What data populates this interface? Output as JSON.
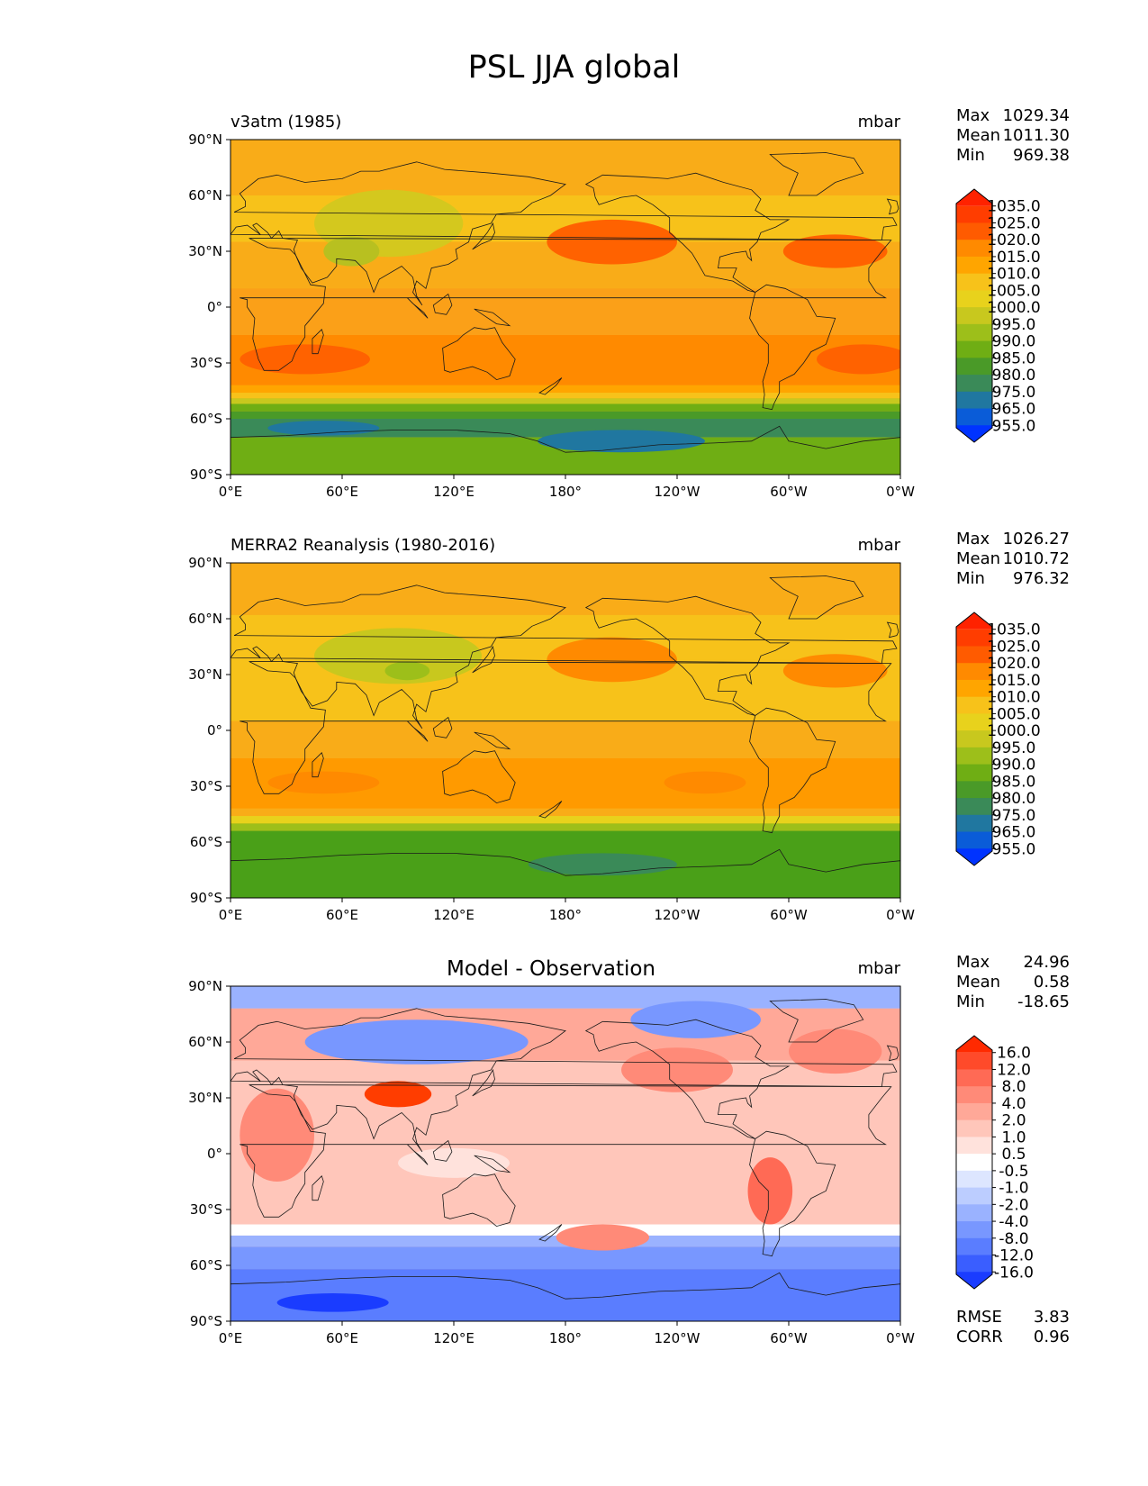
{
  "title": "PSL JJA global",
  "colors": {
    "continents": "#1a1a1a",
    "frame": "#000000"
  },
  "chart_data": [
    {
      "type": "heatmap",
      "subtitle": "v3atm (1985)",
      "units": "mbar",
      "stats": [
        {
          "label": "Max",
          "value": "1029.34"
        },
        {
          "label": "Mean",
          "value": "1011.30"
        },
        {
          "label": "Min",
          "value": "969.38"
        }
      ],
      "xticks": [
        "0°E",
        "60°E",
        "120°E",
        "180°",
        "120°W",
        "60°W",
        "0°W"
      ],
      "yticks": [
        "90°N",
        "60°N",
        "30°N",
        "0°",
        "30°S",
        "60°S",
        "90°S"
      ],
      "levels": [
        "1035.0",
        "1025.0",
        "1020.0",
        "1015.0",
        "1010.0",
        "1005.0",
        "1000.0",
        "995.0",
        "990.0",
        "985.0",
        "980.0",
        "975.0",
        "965.0",
        "955.0"
      ],
      "colormap": [
        "#ff2200",
        "#ff3d00",
        "#ff5b00",
        "#ff8a00",
        "#ffa500",
        "#f7c21a",
        "#e8d21c",
        "#c8c81e",
        "#9dbf1a",
        "#6fae14",
        "#4a9a28",
        "#3a8a58",
        "#2077a0",
        "#0a5cd8",
        "#0033ff"
      ],
      "fields": {
        "base": "#f9ac18"
      },
      "features": [
        {
          "type": "band",
          "lat": [
            90,
            60
          ],
          "color": "#f9ac18"
        },
        {
          "type": "band",
          "lat": [
            60,
            35
          ],
          "color": "#f7c21a"
        },
        {
          "type": "band",
          "lat": [
            35,
            10
          ],
          "color": "#f9ac18"
        },
        {
          "type": "band",
          "lat": [
            10,
            -15
          ],
          "color": "#fba018"
        },
        {
          "type": "band",
          "lat": [
            -15,
            -42
          ],
          "color": "#ff8a00"
        },
        {
          "type": "band",
          "lat": [
            -42,
            -46
          ],
          "color": "#ffa500"
        },
        {
          "type": "band",
          "lat": [
            -46,
            -49
          ],
          "color": "#f7c21a"
        },
        {
          "type": "band",
          "lat": [
            -49,
            -52
          ],
          "color": "#c8c81e"
        },
        {
          "type": "band",
          "lat": [
            -52,
            -56
          ],
          "color": "#6fae14"
        },
        {
          "type": "band",
          "lat": [
            -56,
            -60
          ],
          "color": "#4a9a28"
        },
        {
          "type": "band",
          "lat": [
            -60,
            -70
          ],
          "color": "#3a8a58"
        },
        {
          "type": "band",
          "lat": [
            -70,
            -90
          ],
          "color": "#6fae14"
        },
        {
          "type": "blob",
          "lon": 85,
          "lat": 45,
          "rx": 40,
          "ry": 18,
          "color": "#d4c81e"
        },
        {
          "type": "blob",
          "lon": 65,
          "lat": 30,
          "rx": 15,
          "ry": 8,
          "color": "#b8c020"
        },
        {
          "type": "blob",
          "lon": 205,
          "lat": 35,
          "rx": 35,
          "ry": 12,
          "color": "#ff6200"
        },
        {
          "type": "blob",
          "lon": 325,
          "lat": 30,
          "rx": 28,
          "ry": 9,
          "color": "#ff6200"
        },
        {
          "type": "blob",
          "lon": 40,
          "lat": -28,
          "rx": 35,
          "ry": 8,
          "color": "#ff6200"
        },
        {
          "type": "blob",
          "lon": 340,
          "lat": -28,
          "rx": 25,
          "ry": 8,
          "color": "#ff6200"
        },
        {
          "type": "blob",
          "lon": 50,
          "lat": -65,
          "rx": 30,
          "ry": 4,
          "color": "#2077a0"
        },
        {
          "type": "blob",
          "lon": 210,
          "lat": -72,
          "rx": 45,
          "ry": 6,
          "color": "#2077a0"
        }
      ]
    },
    {
      "type": "heatmap",
      "subtitle": "MERRA2 Reanalysis (1980-2016)",
      "units": "mbar",
      "stats": [
        {
          "label": "Max",
          "value": "1026.27"
        },
        {
          "label": "Mean",
          "value": "1010.72"
        },
        {
          "label": "Min",
          "value": "976.32"
        }
      ],
      "xticks": [
        "0°E",
        "60°E",
        "120°E",
        "180°",
        "120°W",
        "60°W",
        "0°W"
      ],
      "yticks": [
        "90°N",
        "60°N",
        "30°N",
        "0°",
        "30°S",
        "60°S",
        "90°S"
      ],
      "levels": [
        "1035.0",
        "1025.0",
        "1020.0",
        "1015.0",
        "1010.0",
        "1005.0",
        "1000.0",
        "995.0",
        "990.0",
        "985.0",
        "980.0",
        "975.0",
        "965.0",
        "955.0"
      ],
      "colormap": [
        "#ff2200",
        "#ff3d00",
        "#ff5b00",
        "#ff8a00",
        "#ffa500",
        "#f7c21a",
        "#e8d21c",
        "#c8c81e",
        "#9dbf1a",
        "#6fae14",
        "#4a9a28",
        "#3a8a58",
        "#2077a0",
        "#0a5cd8",
        "#0033ff"
      ],
      "fields": {
        "base": "#f9ac18"
      },
      "features": [
        {
          "type": "band",
          "lat": [
            90,
            62
          ],
          "color": "#f9ac18"
        },
        {
          "type": "band",
          "lat": [
            62,
            38
          ],
          "color": "#f7c21a"
        },
        {
          "type": "band",
          "lat": [
            38,
            5
          ],
          "color": "#f7c21a"
        },
        {
          "type": "band",
          "lat": [
            5,
            -15
          ],
          "color": "#f9ac18"
        },
        {
          "type": "band",
          "lat": [
            -15,
            -42
          ],
          "color": "#ff9a00"
        },
        {
          "type": "band",
          "lat": [
            -42,
            -46
          ],
          "color": "#f9ac18"
        },
        {
          "type": "band",
          "lat": [
            -46,
            -50
          ],
          "color": "#e8d21c"
        },
        {
          "type": "band",
          "lat": [
            -50,
            -54
          ],
          "color": "#9dbf1a"
        },
        {
          "type": "band",
          "lat": [
            -54,
            -90
          ],
          "color": "#4aa018"
        },
        {
          "type": "blob",
          "lon": 90,
          "lat": 40,
          "rx": 45,
          "ry": 15,
          "color": "#c8c81e"
        },
        {
          "type": "blob",
          "lon": 95,
          "lat": 32,
          "rx": 12,
          "ry": 5,
          "color": "#9dbf1a"
        },
        {
          "type": "blob",
          "lon": 205,
          "lat": 38,
          "rx": 35,
          "ry": 12,
          "color": "#ff8a00"
        },
        {
          "type": "blob",
          "lon": 325,
          "lat": 32,
          "rx": 28,
          "ry": 9,
          "color": "#ff8a00"
        },
        {
          "type": "blob",
          "lon": 50,
          "lat": -28,
          "rx": 30,
          "ry": 6,
          "color": "#ff8a00"
        },
        {
          "type": "blob",
          "lon": 255,
          "lat": -28,
          "rx": 22,
          "ry": 6,
          "color": "#ff8a00"
        },
        {
          "type": "blob",
          "lon": 200,
          "lat": -72,
          "rx": 40,
          "ry": 6,
          "color": "#3a8a58"
        }
      ]
    },
    {
      "type": "heatmap",
      "subtitle": "Model - Observation",
      "units": "mbar",
      "stats": [
        {
          "label": "Max",
          "value": "24.96"
        },
        {
          "label": "Mean",
          "value": "0.58"
        },
        {
          "label": "Min",
          "value": "-18.65"
        }
      ],
      "extra_stats": [
        {
          "label": "RMSE",
          "value": "3.83"
        },
        {
          "label": "CORR",
          "value": "0.96"
        }
      ],
      "xticks": [
        "0°E",
        "60°E",
        "120°E",
        "180°",
        "120°W",
        "60°W",
        "0°W"
      ],
      "yticks": [
        "90°N",
        "60°N",
        "30°N",
        "0°",
        "30°S",
        "60°S",
        "90°S"
      ],
      "levels": [
        "16.0",
        "12.0",
        "8.0",
        "4.0",
        "2.0",
        "1.0",
        "0.5",
        "-0.5",
        "-1.0",
        "-2.0",
        "-4.0",
        "-8.0",
        "-12.0",
        "-16.0"
      ],
      "colormap": [
        "#ff2a00",
        "#ff4a2a",
        "#ff6a55",
        "#ff8a78",
        "#ffa898",
        "#ffc6ba",
        "#ffe2dc",
        "#ffffff",
        "#dde6ff",
        "#bccdff",
        "#9ab2ff",
        "#7897ff",
        "#5a7dff",
        "#3a5eff",
        "#1a3cff"
      ],
      "fields": {
        "base": "#ffc6ba"
      },
      "features": [
        {
          "type": "band",
          "lat": [
            90,
            78
          ],
          "color": "#9ab2ff"
        },
        {
          "type": "band",
          "lat": [
            78,
            50
          ],
          "color": "#ffa898"
        },
        {
          "type": "band",
          "lat": [
            50,
            -38
          ],
          "color": "#ffc6ba"
        },
        {
          "type": "band",
          "lat": [
            -38,
            -44
          ],
          "color": "#ffffff"
        },
        {
          "type": "band",
          "lat": [
            -44,
            -50
          ],
          "color": "#9ab2ff"
        },
        {
          "type": "band",
          "lat": [
            -50,
            -62
          ],
          "color": "#7897ff"
        },
        {
          "type": "band",
          "lat": [
            -62,
            -90
          ],
          "color": "#5a7dff"
        },
        {
          "type": "blob",
          "lon": 100,
          "lat": 60,
          "rx": 60,
          "ry": 12,
          "color": "#7897ff"
        },
        {
          "type": "blob",
          "lon": 250,
          "lat": 72,
          "rx": 35,
          "ry": 10,
          "color": "#7897ff"
        },
        {
          "type": "blob",
          "lon": 90,
          "lat": 32,
          "rx": 18,
          "ry": 7,
          "color": "#ff3d00"
        },
        {
          "type": "blob",
          "lon": 25,
          "lat": 10,
          "rx": 20,
          "ry": 25,
          "color": "#ff8a78"
        },
        {
          "type": "blob",
          "lon": 290,
          "lat": -20,
          "rx": 12,
          "ry": 18,
          "color": "#ff6a55"
        },
        {
          "type": "blob",
          "lon": 240,
          "lat": 45,
          "rx": 30,
          "ry": 12,
          "color": "#ff8a78"
        },
        {
          "type": "blob",
          "lon": 200,
          "lat": -45,
          "rx": 25,
          "ry": 7,
          "color": "#ff8a78"
        },
        {
          "type": "blob",
          "lon": 325,
          "lat": 55,
          "rx": 25,
          "ry": 12,
          "color": "#ff8a78"
        },
        {
          "type": "blob",
          "lon": 120,
          "lat": -5,
          "rx": 30,
          "ry": 8,
          "color": "#ffe2dc"
        },
        {
          "type": "blob",
          "lon": 55,
          "lat": -80,
          "rx": 30,
          "ry": 5,
          "color": "#1a3cff"
        }
      ]
    }
  ]
}
